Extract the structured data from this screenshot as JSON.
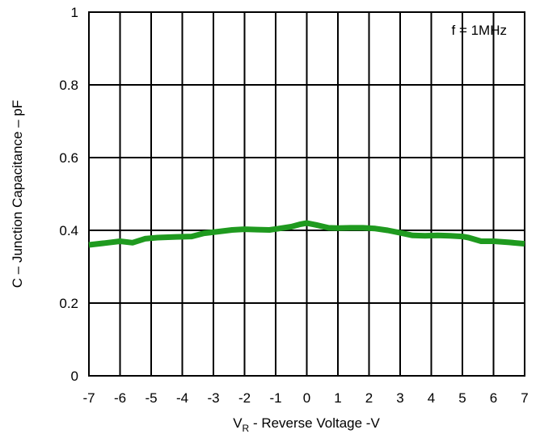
{
  "chart_data": {
    "type": "line",
    "title": "",
    "xlabel_main": "V",
    "xlabel_sub": "R",
    "xlabel_rest": " - Reverse Voltage -V",
    "ylabel": "C – Junction Capacitance – pF",
    "annotation": "f = 1MHz",
    "xlim": [
      -7,
      7
    ],
    "ylim": [
      0,
      1
    ],
    "grid": true,
    "legend": "none",
    "x_ticks": [
      "-7",
      "-6",
      "-5",
      "-4",
      "-3",
      "-2",
      "-1",
      "0",
      "1",
      "2",
      "3",
      "4",
      "5",
      "6",
      "7"
    ],
    "y_ticks": [
      "0",
      "0.2",
      "0.4",
      "0.6",
      "0.8",
      "1"
    ],
    "series": [
      {
        "color": "#1f9a1f",
        "x": [
          -7,
          -6.5,
          -6,
          -5.6,
          -5.2,
          -4.8,
          -4.2,
          -3.7,
          -3.3,
          -2.8,
          -2.4,
          -2.0,
          -1.6,
          -1.2,
          -0.9,
          -0.5,
          -0.2,
          0,
          0.3,
          0.7,
          1.0,
          1.4,
          1.8,
          2.2,
          2.6,
          3.0,
          3.4,
          3.8,
          4.2,
          4.6,
          5.0,
          5.2,
          5.6,
          6.0,
          6.5,
          7.0
        ],
        "y": [
          0.36,
          0.365,
          0.37,
          0.366,
          0.377,
          0.38,
          0.382,
          0.383,
          0.392,
          0.397,
          0.401,
          0.403,
          0.402,
          0.401,
          0.405,
          0.41,
          0.417,
          0.42,
          0.415,
          0.407,
          0.406,
          0.407,
          0.407,
          0.405,
          0.4,
          0.393,
          0.386,
          0.385,
          0.386,
          0.385,
          0.383,
          0.38,
          0.37,
          0.37,
          0.367,
          0.363
        ]
      }
    ]
  }
}
